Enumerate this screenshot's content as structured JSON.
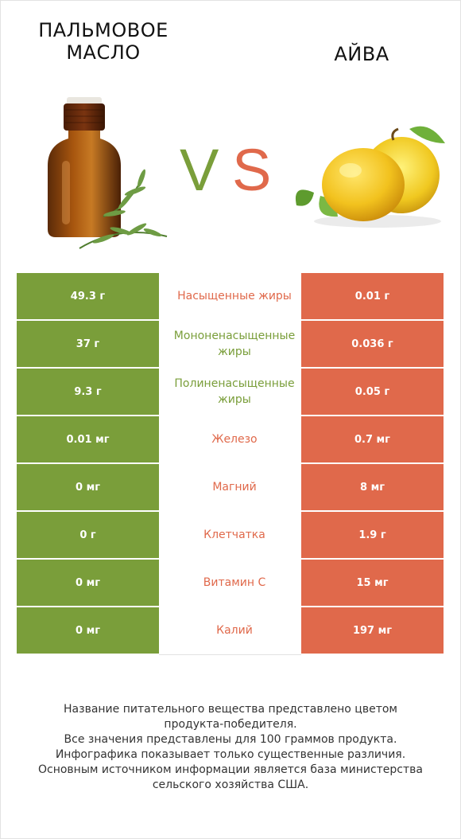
{
  "header": {
    "left_title": "ПАЛЬМОВОЕ МАСЛО",
    "right_title": "АЙВА",
    "vs_left": "V",
    "vs_right": "S"
  },
  "colors": {
    "left_winner": "#7a9e3a",
    "right_winner": "#e0694b",
    "neutral_border": "#e2e2e2"
  },
  "images": {
    "left": "palm-oil-bottle-with-rosemary",
    "right": "quince-fruit-with-leaves"
  },
  "rows": [
    {
      "left": "49.3 г",
      "nutrient": "Насыщенные жиры",
      "right": "0.01 г",
      "winner": "right"
    },
    {
      "left": "37 г",
      "nutrient": "Мононенасыщенные жиры",
      "right": "0.036 г",
      "winner": "left"
    },
    {
      "left": "9.3 г",
      "nutrient": "Полиненасыщенные жиры",
      "right": "0.05 г",
      "winner": "left"
    },
    {
      "left": "0.01 мг",
      "nutrient": "Железо",
      "right": "0.7 мг",
      "winner": "right"
    },
    {
      "left": "0 мг",
      "nutrient": "Магний",
      "right": "8 мг",
      "winner": "right"
    },
    {
      "left": "0 г",
      "nutrient": "Клетчатка",
      "right": "1.9 г",
      "winner": "right"
    },
    {
      "left": "0 мг",
      "nutrient": "Витамин C",
      "right": "15 мг",
      "winner": "right"
    },
    {
      "left": "0 мг",
      "nutrient": "Калий",
      "right": "197 мг",
      "winner": "right"
    }
  ],
  "footer": {
    "line1": "Название питательного вещества представлено цветом",
    "line2": "продукта-победителя.",
    "line3": "Все значения представлены для 100 граммов продукта.",
    "line4": "Инфографика показывает только существенные различия.",
    "line5": "Основным источником информации является база министерства",
    "line6": "сельского хозяйства США."
  }
}
